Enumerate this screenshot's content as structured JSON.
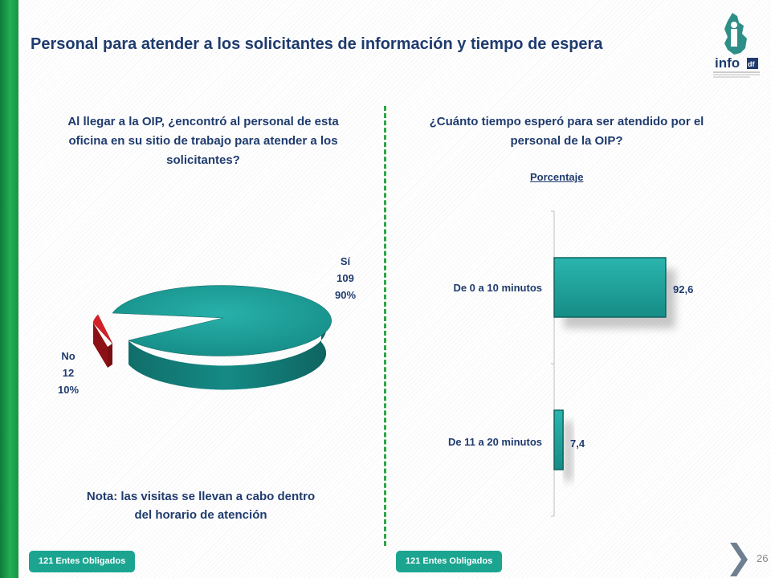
{
  "slide": {
    "title": "Personal para atender a los solicitantes de información y tiempo de espera",
    "page_number": "26",
    "logo_text": "info",
    "logo_subtext": "df"
  },
  "left": {
    "question": "Al llegar a la OIP, ¿encontró al personal de esta oficina en su sitio de trabajo para atender a los solicitantes?",
    "note": "Nota: las visitas se llevan a cabo dentro del horario de atención",
    "footer": "121 Entes Obligados"
  },
  "right": {
    "question": "¿Cuánto tiempo esperó para ser atendido por el personal de la OIP?",
    "footer": "121 Entes Obligados"
  },
  "colors": {
    "title": "#1f3b6e",
    "teal": "#1a9d97",
    "red": "#d42027",
    "green_bar": "#1a9446",
    "pill": "#1ba591"
  },
  "chart_data": [
    {
      "type": "pie",
      "labels": [
        "Sí",
        "No"
      ],
      "values": [
        109,
        12
      ],
      "percent_labels": [
        "90%",
        "10%"
      ],
      "colors": [
        "#1a9d97",
        "#d42027"
      ]
    },
    {
      "type": "bar",
      "orientation": "horizontal",
      "title": "Porcentaje",
      "categories": [
        "De 0 a 10 minutos",
        "De 11 a 20 minutos"
      ],
      "values": [
        92.6,
        7.4
      ],
      "value_labels": [
        "92,6",
        "7,4"
      ],
      "colors": [
        "#1a9d97"
      ]
    }
  ]
}
